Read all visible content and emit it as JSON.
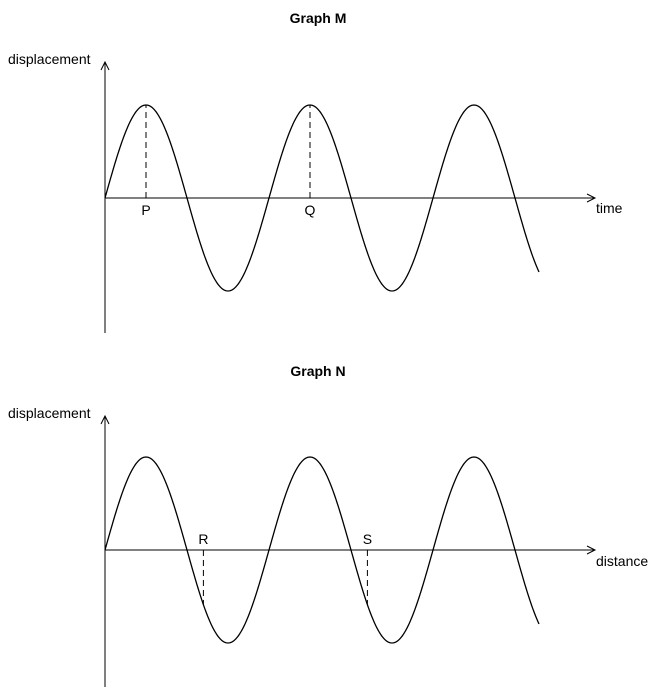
{
  "graphs": [
    {
      "title": "Graph M",
      "y_label": "displacement",
      "x_label": "time",
      "markers": [
        {
          "label": "P",
          "phase": 0.25
        },
        {
          "label": "Q",
          "phase": 1.25
        }
      ]
    },
    {
      "title": "Graph N",
      "y_label": "displacement",
      "x_label": "distance",
      "markers": [
        {
          "label": "R",
          "phase": 0.6
        },
        {
          "label": "S",
          "phase": 1.6
        }
      ]
    }
  ],
  "wave": {
    "cycles_shown": 2.65,
    "shape": "sinusoidal"
  }
}
